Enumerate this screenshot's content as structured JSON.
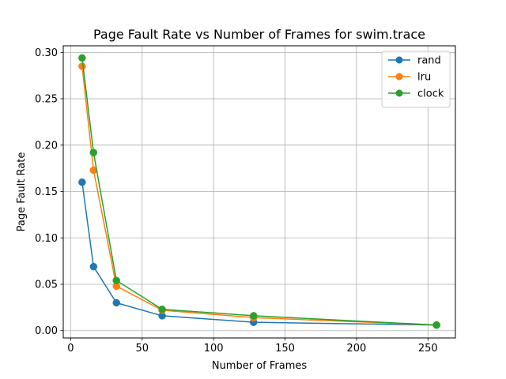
{
  "chart_data": {
    "type": "line",
    "title": "Page Fault Rate vs Number of Frames for swim.trace",
    "xlabel": "Number of Frames",
    "ylabel": "Page Fault Rate",
    "x": [
      8,
      16,
      32,
      64,
      128,
      256
    ],
    "xlim": [
      -5.2,
      269.2
    ],
    "ylim": [
      -0.0079,
      0.3071
    ],
    "xticks": [
      0,
      50,
      100,
      150,
      200,
      250
    ],
    "xtick_labels": [
      "0",
      "50",
      "100",
      "150",
      "200",
      "250"
    ],
    "yticks": [
      0.0,
      0.05,
      0.1,
      0.15,
      0.2,
      0.25,
      0.3
    ],
    "ytick_labels": [
      "0.00",
      "0.05",
      "0.10",
      "0.15",
      "0.20",
      "0.25",
      "0.30"
    ],
    "grid": true,
    "legend_position": "top-right",
    "series": [
      {
        "name": "rand",
        "color": "#1f77b4",
        "values": [
          0.16,
          0.069,
          0.03,
          0.016,
          0.009,
          0.006
        ]
      },
      {
        "name": "lru",
        "color": "#ff7f0e",
        "values": [
          0.285,
          0.173,
          0.048,
          0.022,
          0.014,
          0.006
        ]
      },
      {
        "name": "clock",
        "color": "#2ca02c",
        "values": [
          0.294,
          0.192,
          0.054,
          0.023,
          0.016,
          0.006
        ]
      }
    ]
  }
}
